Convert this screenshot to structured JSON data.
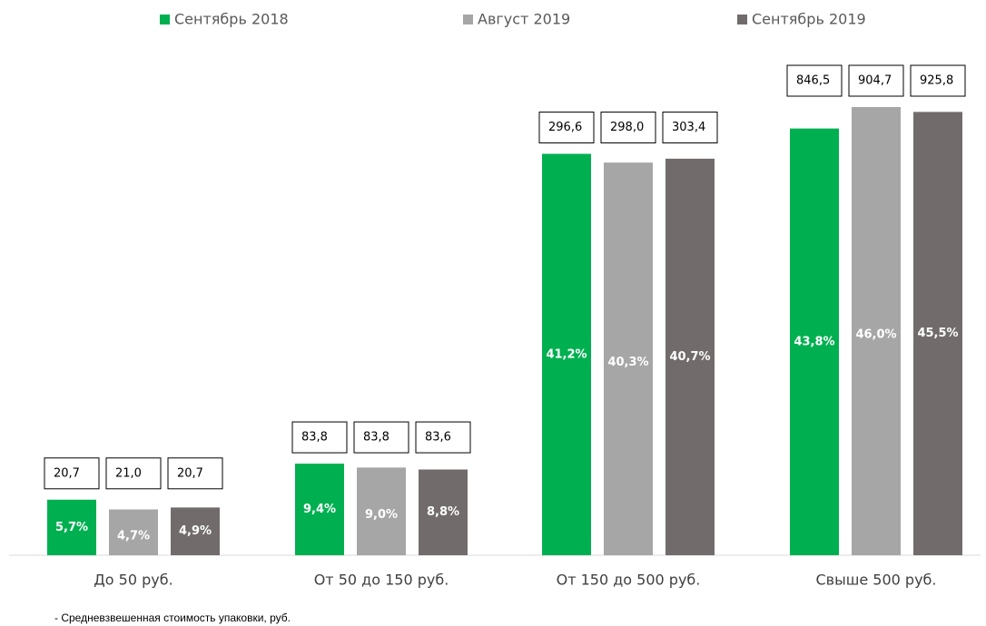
{
  "chart_data": {
    "type": "bar",
    "categories": [
      "До 50 руб.",
      "От 50 до 150 руб.",
      "От 150 до 500 руб.",
      "Свыше 500 руб."
    ],
    "series": [
      {
        "name": "Сентябрь 2018",
        "color": "#00b050",
        "values": [
          5.7,
          9.4,
          41.2,
          43.8
        ],
        "value_labels": [
          "5,7%",
          "9,4%",
          "41,2%",
          "43,8%"
        ],
        "prices": [
          20.7,
          83.8,
          296.6,
          846.5
        ],
        "price_labels": [
          "20,7",
          "83,8",
          "296,6",
          "846,5"
        ]
      },
      {
        "name": "Август 2019",
        "color": "#a6a6a6",
        "values": [
          4.7,
          9.0,
          40.3,
          46.0
        ],
        "value_labels": [
          "4,7%",
          "9,0%",
          "40,3%",
          "46,0%"
        ],
        "prices": [
          21.0,
          83.8,
          298.0,
          904.7
        ],
        "price_labels": [
          "21,0",
          "83,8",
          "298,0",
          "904,7"
        ]
      },
      {
        "name": "Сентябрь 2019",
        "color": "#716c6b",
        "values": [
          4.9,
          8.8,
          40.7,
          45.5
        ],
        "value_labels": [
          "4,9%",
          "8,8%",
          "40,7%",
          "45,5%"
        ],
        "prices": [
          20.7,
          83.6,
          303.4,
          925.8
        ],
        "price_labels": [
          "20,7",
          "83,6",
          "303,4",
          "925,8"
        ]
      }
    ],
    "legend": "top",
    "note": "- Средневзвешенная стоимость упаковки, руб."
  }
}
